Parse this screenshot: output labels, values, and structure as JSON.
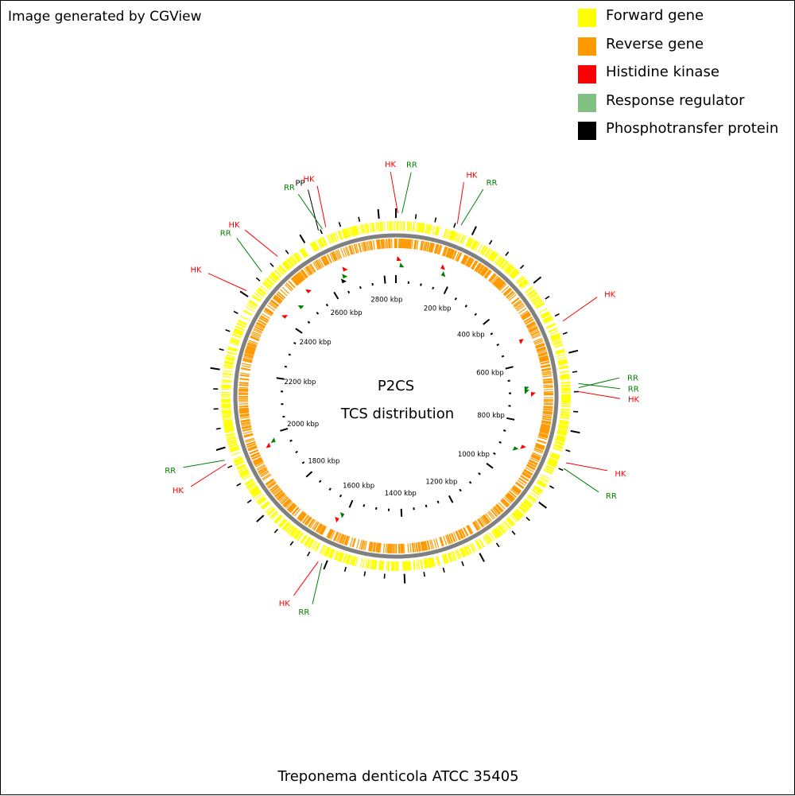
{
  "credit": "Image generated by CGView",
  "title_line1": "P2CS",
  "title_line2": "TCS distribution",
  "organism": "Treponema denticola ATCC 35405",
  "legend": [
    {
      "label": "Forward gene",
      "color": "#ffff00"
    },
    {
      "label": "Reverse gene",
      "color": "#ff9900"
    },
    {
      "label": "Histidine kinase",
      "color": "#ff0000"
    },
    {
      "label": "Response regulator",
      "color": "#80c080"
    },
    {
      "label": "Phosphotransfer protein",
      "color": "#000000"
    }
  ],
  "colors": {
    "forward": "#ffff00",
    "reverse": "#ff9900",
    "backbone": "#808080",
    "hk": "#ff0000",
    "rr": "#008000",
    "pp": "#000000"
  },
  "genome_kbp": 2843,
  "scale_labels": [
    "200 kbp",
    "400 kbp",
    "600 kbp",
    "800 kbp",
    "1000 kbp",
    "1200 kbp",
    "1400 kbp",
    "1600 kbp",
    "1800 kbp",
    "2000 kbp",
    "2200 kbp",
    "2400 kbp",
    "2600 kbp",
    "2800 kbp"
  ],
  "features": [
    {
      "type": "HK",
      "label": "HK",
      "position_kbp": 5
    },
    {
      "type": "RR",
      "label": "RR",
      "position_kbp": 15
    },
    {
      "type": "HK",
      "label": "HK",
      "position_kbp": 155
    },
    {
      "type": "RR",
      "label": "RR",
      "position_kbp": 165
    },
    {
      "type": "HK",
      "label": "HK",
      "position_kbp": 520
    },
    {
      "type": "RR",
      "label": "RR",
      "position_kbp": 680
    },
    {
      "type": "RR",
      "label": "RR",
      "position_kbp": 690
    },
    {
      "type": "HK",
      "label": "HK",
      "position_kbp": 700
    },
    {
      "type": "HK",
      "label": "HK",
      "position_kbp": 880
    },
    {
      "type": "RR",
      "label": "RR",
      "position_kbp": 895
    },
    {
      "type": "RR",
      "label": "RR",
      "position_kbp": 1610
    },
    {
      "type": "HK",
      "label": "HK",
      "position_kbp": 1620
    },
    {
      "type": "HK",
      "label": "HK",
      "position_kbp": 1960
    },
    {
      "type": "RR",
      "label": "RR",
      "position_kbp": 1970
    },
    {
      "type": "HK",
      "label": "HK",
      "position_kbp": 2410
    },
    {
      "type": "RR",
      "label": "RR",
      "position_kbp": 2470
    },
    {
      "type": "HK",
      "label": "HK",
      "position_kbp": 2525
    },
    {
      "type": "PP",
      "label": "PP",
      "position_kbp": 2645
    },
    {
      "type": "RR",
      "label": "RR",
      "position_kbp": 2655
    },
    {
      "type": "HK",
      "label": "HK",
      "position_kbp": 2665
    }
  ]
}
